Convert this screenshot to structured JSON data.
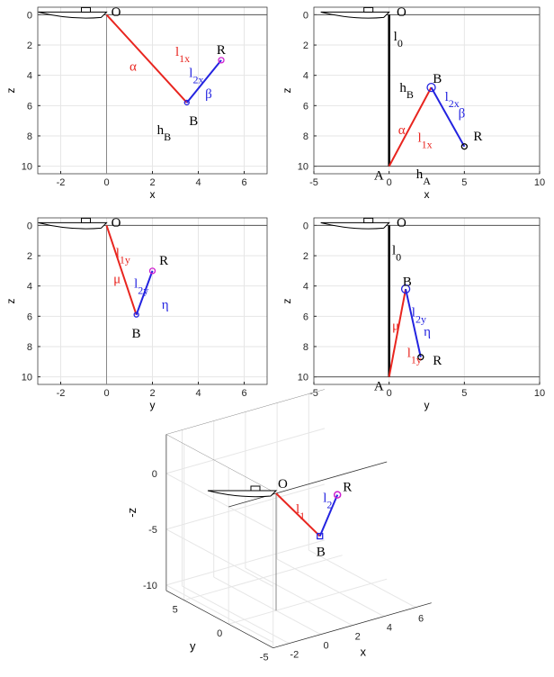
{
  "chart_data": [
    {
      "type": "line",
      "xlabel": "x",
      "ylabel": "z",
      "xlim": [
        -3,
        7
      ],
      "ylim": [
        -0.5,
        10.5
      ],
      "xticks": [
        -2,
        0,
        2,
        4,
        6
      ],
      "yticks": [
        0,
        2,
        4,
        6,
        8,
        10
      ],
      "y_reversed": true,
      "grid": true,
      "reference_lines": [
        0
      ],
      "series": [
        {
          "color": "#e8251f",
          "x": [
            0,
            3.5
          ],
          "values": [
            0,
            5.8
          ]
        },
        {
          "color": "#2323e0",
          "x": [
            3.5,
            5
          ],
          "values": [
            5.8,
            3
          ]
        }
      ],
      "annotations": [
        {
          "text": "O"
        },
        {
          "text": "α",
          "color": "#e8251f"
        },
        {
          "text": "l",
          "sub": "1x",
          "color": "#e8251f"
        },
        {
          "text": "R"
        },
        {
          "text": "l",
          "sub": "2x",
          "color": "#2323e0"
        },
        {
          "text": "β",
          "color": "#2323e0"
        },
        {
          "text": "B"
        },
        {
          "text": "h",
          "sub": "B"
        }
      ]
    },
    {
      "type": "line",
      "xlabel": "x",
      "ylabel": "z",
      "xlim": [
        -5,
        10
      ],
      "ylim": [
        -0.5,
        10.5
      ],
      "xticks": [
        -5,
        0,
        5,
        10
      ],
      "yticks": [
        0,
        2,
        4,
        6,
        8,
        10
      ],
      "y_reversed": true,
      "grid": true,
      "reference_lines": [
        0,
        10
      ],
      "series": [
        {
          "color": "#000000",
          "x": [
            0,
            0
          ],
          "values": [
            0,
            10
          ]
        },
        {
          "color": "#e8251f",
          "x": [
            0,
            2.8
          ],
          "values": [
            10,
            4.8
          ]
        },
        {
          "color": "#2323e0",
          "x": [
            2.8,
            5
          ],
          "values": [
            4.8,
            8.7
          ]
        }
      ],
      "annotations": [
        {
          "text": "O"
        },
        {
          "text": "l",
          "sub": "0"
        },
        {
          "text": "h",
          "sub": "B"
        },
        {
          "text": "B"
        },
        {
          "text": "l",
          "sub": "2x",
          "color": "#2323e0"
        },
        {
          "text": "β",
          "color": "#2323e0"
        },
        {
          "text": "R"
        },
        {
          "text": "α",
          "color": "#e8251f"
        },
        {
          "text": "l",
          "sub": "1x",
          "color": "#e8251f"
        },
        {
          "text": "A"
        },
        {
          "text": "h",
          "sub": "A"
        }
      ]
    },
    {
      "type": "line",
      "xlabel": "y",
      "ylabel": "z",
      "xlim": [
        -3,
        7
      ],
      "ylim": [
        -0.5,
        10.5
      ],
      "xticks": [
        -2,
        0,
        2,
        4,
        6
      ],
      "yticks": [
        0,
        2,
        4,
        6,
        8,
        10
      ],
      "y_reversed": true,
      "grid": true,
      "reference_lines": [
        0
      ],
      "series": [
        {
          "color": "#e8251f",
          "x": [
            0,
            1.3
          ],
          "values": [
            0,
            5.9
          ]
        },
        {
          "color": "#2323e0",
          "x": [
            1.3,
            2
          ],
          "values": [
            5.9,
            3
          ]
        }
      ],
      "annotations": [
        {
          "text": "O"
        },
        {
          "text": "l",
          "sub": "1y",
          "color": "#e8251f"
        },
        {
          "text": "μ",
          "color": "#e8251f"
        },
        {
          "text": "R"
        },
        {
          "text": "l",
          "sub": "2y",
          "color": "#2323e0"
        },
        {
          "text": "η",
          "color": "#2323e0"
        },
        {
          "text": "B"
        }
      ]
    },
    {
      "type": "line",
      "xlabel": "y",
      "ylabel": "z",
      "xlim": [
        -5,
        10
      ],
      "ylim": [
        -0.5,
        10.5
      ],
      "xticks": [
        -5,
        0,
        5,
        10
      ],
      "yticks": [
        0,
        2,
        4,
        6,
        8,
        10
      ],
      "y_reversed": true,
      "grid": true,
      "reference_lines": [
        0,
        10
      ],
      "series": [
        {
          "color": "#000000",
          "x": [
            0,
            0
          ],
          "values": [
            0,
            10
          ]
        },
        {
          "color": "#e8251f",
          "x": [
            0,
            1.1
          ],
          "values": [
            10,
            4.2
          ]
        },
        {
          "color": "#2323e0",
          "x": [
            1.1,
            2.1
          ],
          "values": [
            4.2,
            8.7
          ]
        }
      ],
      "annotations": [
        {
          "text": "O"
        },
        {
          "text": "l",
          "sub": "0"
        },
        {
          "text": "B"
        },
        {
          "text": "μ",
          "color": "#e8251f"
        },
        {
          "text": "l",
          "sub": "2y",
          "color": "#2323e0"
        },
        {
          "text": "η",
          "color": "#2323e0"
        },
        {
          "text": "l",
          "sub": "1y",
          "color": "#e8251f"
        },
        {
          "text": "A"
        },
        {
          "text": "R"
        }
      ]
    },
    {
      "type": "line3d",
      "xlabel": "x",
      "ylabel": "y",
      "zlabel": "-z",
      "xlim": [
        -3,
        7
      ],
      "ylim": [
        -5,
        7
      ],
      "zlim": [
        -10.5,
        3.5
      ],
      "xticks": [
        -2,
        0,
        2,
        4,
        6
      ],
      "yticks": [
        5,
        0,
        -5
      ],
      "zticks": [
        0,
        -5,
        -10
      ],
      "grid": true,
      "series": [
        {
          "color": "#e8251f",
          "x": [
            0,
            3.5
          ],
          "y": [
            0,
            1.3
          ],
          "z": [
            0,
            -5.8
          ]
        },
        {
          "color": "#2323e0",
          "x": [
            3.5,
            5
          ],
          "y": [
            1.3,
            2
          ],
          "z": [
            -5.8,
            -3
          ]
        }
      ],
      "annotations": [
        {
          "text": "O"
        },
        {
          "text": "l",
          "sub": "1",
          "color": "#e8251f"
        },
        {
          "text": "l",
          "sub": "2",
          "color": "#2323e0"
        },
        {
          "text": "R"
        },
        {
          "text": "B"
        }
      ]
    }
  ]
}
